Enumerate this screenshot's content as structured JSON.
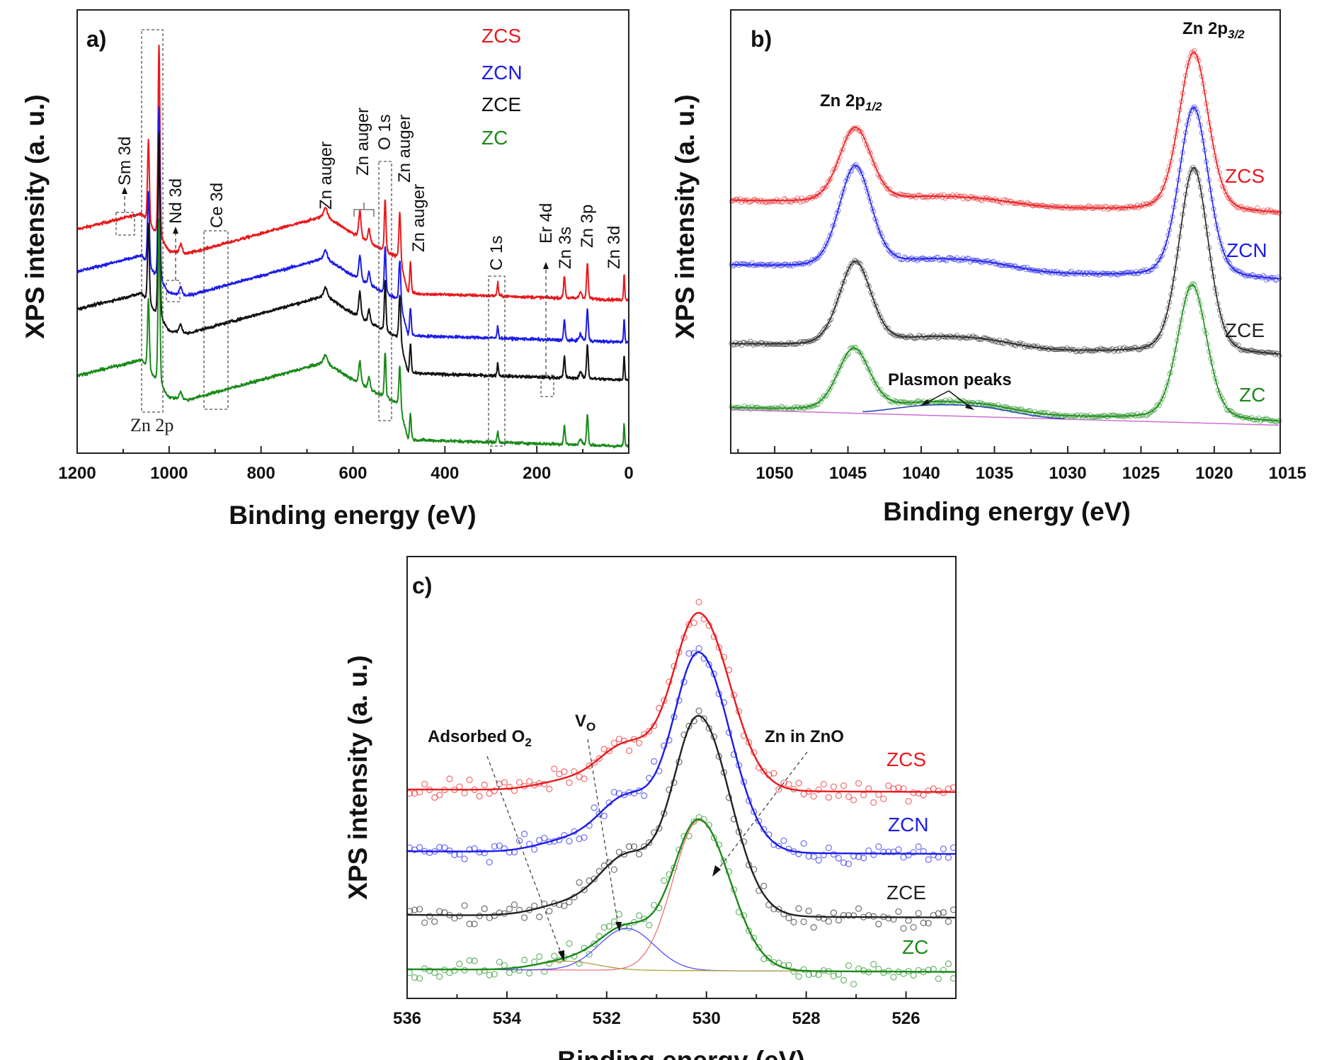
{
  "chart_data": [
    {
      "panel": "a)",
      "type": "line",
      "xlabel": "Binding energy (eV)",
      "ylabel": "XPS intensity (a. u.)",
      "xlim": [
        1200,
        0
      ],
      "ylim": [
        0,
        100
      ],
      "xticks": [
        1200,
        1000,
        800,
        600,
        400,
        200,
        0
      ],
      "xtick_labels": [
        "1200",
        "1000",
        "800",
        "600",
        "400",
        "200",
        "0"
      ],
      "grid": false,
      "legend_placement": "top-right",
      "baseline_shape": [
        [
          1200,
          50.5
        ],
        [
          1060,
          54
        ],
        [
          1035,
          50
        ],
        [
          1000,
          45.5
        ],
        [
          960,
          45
        ],
        [
          660,
          53.5
        ],
        [
          600,
          49.5
        ],
        [
          530,
          45.5
        ],
        [
          500,
          44
        ],
        [
          480,
          36
        ],
        [
          300,
          35.5
        ],
        [
          0,
          34.5
        ]
      ],
      "peaks_eV_height": [
        [
          1045,
          19,
          2
        ],
        [
          1022,
          44,
          2
        ],
        [
          975,
          2,
          3
        ],
        [
          660,
          2,
          4
        ],
        [
          585,
          6,
          2.5
        ],
        [
          565,
          3,
          2.5
        ],
        [
          530,
          12,
          1.8
        ],
        [
          498,
          11,
          2
        ],
        [
          475,
          7,
          1.8
        ],
        [
          285,
          3,
          1.5
        ],
        [
          140,
          5,
          1.8
        ],
        [
          105,
          1.5,
          3
        ],
        [
          90,
          8,
          1.8
        ],
        [
          10,
          6,
          1.2
        ]
      ],
      "series": [
        {
          "name": "ZCS",
          "color": "#e8191c",
          "offset": 0,
          "peak_scale": 1.0
        },
        {
          "name": "ZCN",
          "color": "#1c1ce8",
          "offset": -9.5,
          "peak_scale": 0.9
        },
        {
          "name": "ZCE",
          "color": "#111111",
          "offset": -18,
          "peak_scale": 0.95
        },
        {
          "name": "ZC",
          "color": "#1a8a1a",
          "offset": -33,
          "peak_scale": 0.85
        }
      ],
      "annotations": [
        "Sm 3d",
        "Nd 3d",
        "Ce 3d",
        "Zn auger",
        "Zn auger",
        "O 1s",
        "Zn auger",
        "Zn auger",
        "C 1s",
        "Er 4d",
        "Zn 3s",
        "Zn 3p",
        "Zn 3d",
        "Zn 2p"
      ]
    },
    {
      "panel": "b)",
      "type": "line",
      "xlabel": "Binding energy (eV)",
      "ylabel": "XPS intensity (a. u.)",
      "xlim": [
        1053,
        1015.5
      ],
      "ylim": [
        0,
        100
      ],
      "xticks": [
        1050,
        1045,
        1040,
        1035,
        1030,
        1025,
        1020,
        1015
      ],
      "xtick_labels": [
        "1050",
        "1045",
        "1040",
        "1035",
        "1030",
        "1025",
        "1020",
        "1015"
      ],
      "grid": false,
      "series": [
        {
          "name": "ZCS",
          "color": "#e8191c",
          "base": [
            57,
            54
          ],
          "peaks": [
            [
              1044.5,
              17,
              1.1
            ],
            [
              1021.4,
              36,
              1.0
            ]
          ],
          "plasmon": 1.5
        },
        {
          "name": "ZCN",
          "color": "#1c1ce8",
          "base": [
            42.4,
            39
          ],
          "peaks": [
            [
              1044.5,
              23,
              1.1
            ],
            [
              1021.4,
              38.5,
              1.0
            ]
          ],
          "plasmon": 2
        },
        {
          "name": "ZCE",
          "color": "#222222",
          "base": [
            24.6,
            22
          ],
          "peaks": [
            [
              1044.5,
              19,
              1.1
            ],
            [
              1021.4,
              42,
              1.0
            ]
          ],
          "plasmon": 2
        },
        {
          "name": "ZC",
          "color": "#1a8a1a",
          "base": [
            10.2,
            7
          ],
          "peaks": [
            [
              1044.6,
              14,
              1.1
            ],
            [
              1021.5,
              30.5,
              1.0
            ]
          ],
          "plasmon": 2
        }
      ],
      "background_color": "#d070d0",
      "plasmon_color": "#2040b0",
      "annotations": {
        "zn2p12": "Zn 2p",
        "zn2p12_sub": "1/2",
        "zn2p32": "Zn 2p",
        "zn2p32_sub": "3/2",
        "plasmon": "Plasmon peaks"
      }
    },
    {
      "panel": "c)",
      "type": "line",
      "xlabel": "Binding energy (eV)",
      "ylabel": "XPS intensity (a. u.)",
      "xlim": [
        536,
        525
      ],
      "ylim": [
        0,
        100
      ],
      "xticks": [
        536,
        534,
        532,
        530,
        528,
        526
      ],
      "xtick_labels": [
        "536",
        "534",
        "532",
        "530",
        "528",
        "526"
      ],
      "grid": false,
      "components_eV": {
        "main": 530.15,
        "vo": 531.6,
        "adsorbed": 532.8
      },
      "series": [
        {
          "name": "ZCS",
          "color": "#e8191c",
          "base": 46.7,
          "main": 40,
          "vo": 10,
          "ads": 2
        },
        {
          "name": "ZCN",
          "color": "#1c1ce8",
          "base": 32.7,
          "main": 45,
          "vo": 12,
          "ads": 2.5
        },
        {
          "name": "ZCE",
          "color": "#222222",
          "base": 18.3,
          "main": 45,
          "vo": 13,
          "ads": 2.5
        },
        {
          "name": "ZC",
          "color": "#1a8a1a",
          "base": 6.0,
          "main": 34,
          "vo": 9.5,
          "ads": 2
        }
      ],
      "component_colors": {
        "main": "#f07070",
        "vo": "#5050f0",
        "ads": "#b0a040"
      },
      "annotations": {
        "adsorbed": "Adsorbed O",
        "adsorbed_sub": "2",
        "vo": "V",
        "vo_sub": "O",
        "znzno": "Zn in ZnO"
      }
    }
  ]
}
